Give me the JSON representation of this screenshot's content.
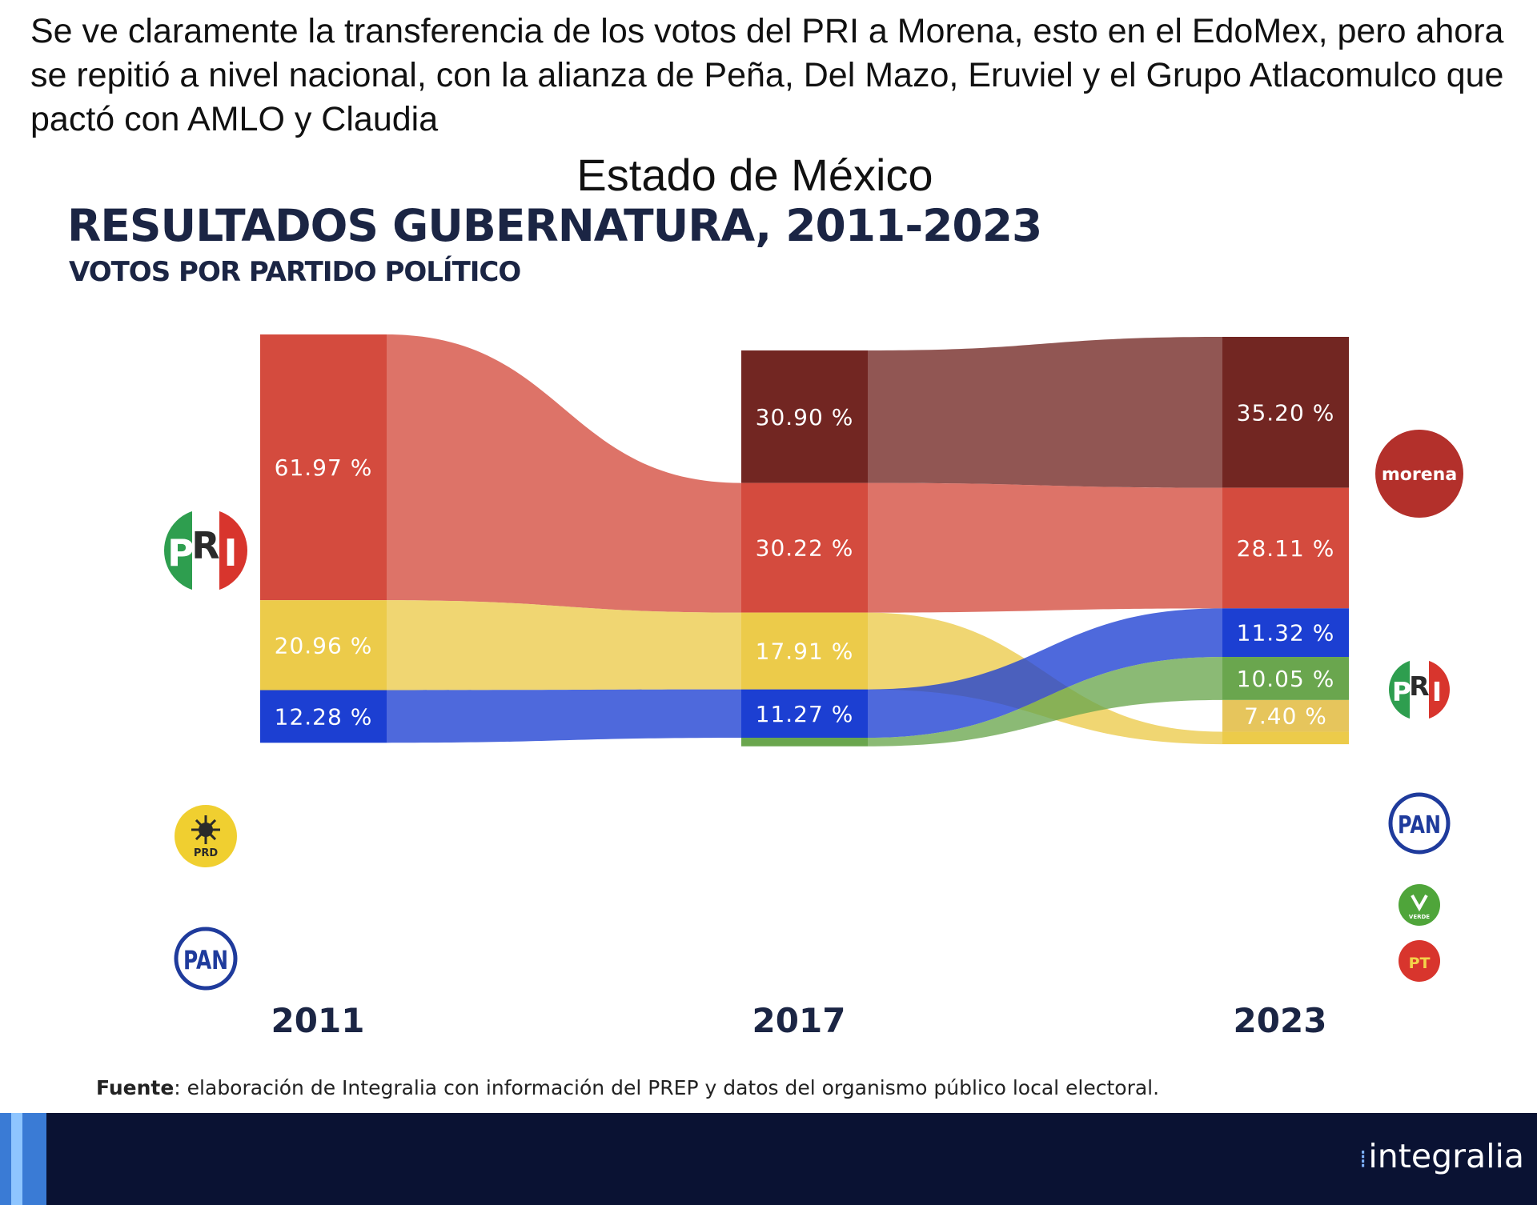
{
  "intro_text": "Se ve claramente la transferencia de los votos del PRI a Morena, esto en el EdoMex, pero ahora se repitió a nivel nacional, con la alianza de Peña, Del Mazo, Eruviel y el Grupo Atlacomulco que pactó con AMLO y Claudia",
  "slide_subject": "Estado de México",
  "source": {
    "label": "Fuente",
    "text": ": elaboración de Integralia con información del PREP y  datos del organismo público local electoral."
  },
  "brand": "integralia",
  "colors": {
    "PRI": "#d44b3e",
    "Morena": "#722622",
    "PRD": "#eccb4a",
    "PAN": "#1c3fd2",
    "Verde": "#6aa64e",
    "PT": "#e6c55c"
  },
  "logos": {
    "pri": [
      "P",
      "R",
      "I"
    ],
    "prd": "PRD",
    "pan": "PAN",
    "morena": "morena",
    "verde": "VERDE",
    "pt": "PT"
  },
  "chart_data": {
    "type": "sankey",
    "title": "RESULTADOS GUBERNATURA, 2011-2023",
    "subtitle": "VOTOS POR PARTIDO POLÍTICO",
    "columns": [
      "2011",
      "2017",
      "2023"
    ],
    "nodes": {
      "2011": [
        {
          "party": "PRI",
          "value": 61.97,
          "label": "61.97 %"
        },
        {
          "party": "PRD",
          "value": 20.96,
          "label": "20.96 %"
        },
        {
          "party": "PAN",
          "value": 12.28,
          "label": "12.28 %"
        }
      ],
      "2017": [
        {
          "party": "Morena",
          "value": 30.9,
          "label": "30.90 %"
        },
        {
          "party": "PRI",
          "value": 30.22,
          "label": "30.22 %"
        },
        {
          "party": "PRD",
          "value": 17.91,
          "label": "17.91 %"
        },
        {
          "party": "PAN",
          "value": 11.27,
          "label": "11.27 %"
        },
        {
          "party": "Verde",
          "value": 2.0,
          "label": ""
        }
      ],
      "2023": [
        {
          "party": "Morena",
          "value": 35.2,
          "label": "35.20 %"
        },
        {
          "party": "PRI",
          "value": 28.11,
          "label": "28.11 %"
        },
        {
          "party": "PAN",
          "value": 11.32,
          "label": "11.32 %"
        },
        {
          "party": "Verde",
          "value": 10.05,
          "label": "10.05 %"
        },
        {
          "party": "PT",
          "value": 7.4,
          "label": "7.40 %"
        },
        {
          "party": "PRD",
          "value": 2.9,
          "label": ""
        }
      ]
    },
    "flows": [
      {
        "party": "PRI",
        "from": "2011",
        "to": "2017"
      },
      {
        "party": "PRD",
        "from": "2011",
        "to": "2017"
      },
      {
        "party": "PAN",
        "from": "2011",
        "to": "2017"
      },
      {
        "party": "Morena",
        "from": "2017",
        "to": "2023"
      },
      {
        "party": "PRI",
        "from": "2017",
        "to": "2023"
      },
      {
        "party": "PRD",
        "from": "2017",
        "to": "2023"
      },
      {
        "party": "PAN",
        "from": "2017",
        "to": "2023"
      },
      {
        "party": "Verde",
        "from": "2017",
        "to": "2023"
      }
    ]
  }
}
